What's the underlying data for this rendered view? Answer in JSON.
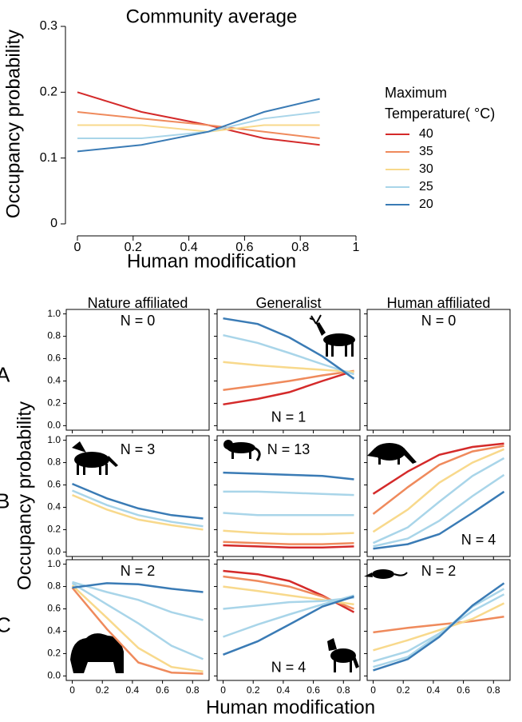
{
  "chart_data": [
    {
      "type": "line",
      "title": "Community average",
      "xlabel": "Human modification",
      "ylabel": "Occupancy probability",
      "legend_title": [
        "Maximum",
        "Temperature( °C)"
      ],
      "x": [
        0,
        0.23,
        0.47,
        0.67,
        0.87
      ],
      "xlim": [
        0,
        1
      ],
      "xticks": [
        0,
        0.2,
        0.4,
        0.6,
        0.8,
        1
      ],
      "ylim": [
        0,
        0.3
      ],
      "yticks": [
        0,
        0.1,
        0.2,
        0.3
      ],
      "series": [
        {
          "name": "40",
          "color": "#d42a2a",
          "values": [
            0.2,
            0.17,
            0.15,
            0.13,
            0.12
          ]
        },
        {
          "name": "35",
          "color": "#ef8a5c",
          "values": [
            0.17,
            0.16,
            0.15,
            0.14,
            0.13
          ]
        },
        {
          "name": "30",
          "color": "#f8d98c",
          "values": [
            0.15,
            0.15,
            0.14,
            0.15,
            0.15
          ]
        },
        {
          "name": "25",
          "color": "#a9d5e9",
          "values": [
            0.13,
            0.13,
            0.14,
            0.16,
            0.17
          ]
        },
        {
          "name": "20",
          "color": "#3a7bb5",
          "values": [
            0.11,
            0.12,
            0.14,
            0.17,
            0.19
          ]
        }
      ]
    },
    {
      "type": "line",
      "xlabel": "Human modification",
      "ylabel": "Occupancy probability",
      "columns": [
        "Nature affiliated",
        "Generalist",
        "Human affiliated"
      ],
      "rows": [
        "A",
        "B",
        "C"
      ],
      "x": [
        0,
        0.23,
        0.44,
        0.66,
        0.87
      ],
      "xlim": [
        -0.04,
        0.91
      ],
      "xticks": [
        0,
        0.2,
        0.4,
        0.6,
        0.8
      ],
      "ylim": [
        -0.04,
        1.04
      ],
      "yticks": [
        {
          "value": 0,
          "label": "0.0"
        },
        {
          "value": 0.2,
          "label": "0.2"
        },
        {
          "value": 0.4,
          "label": "0.4"
        },
        {
          "value": 0.6,
          "label": "0.6"
        },
        {
          "value": 0.8,
          "label": "0.8"
        },
        {
          "value": 1,
          "label": "1.0"
        }
      ],
      "panels": [
        {
          "annotation": "N = 0",
          "series": []
        },
        {
          "annotation": "N = 1",
          "series": [
            {
              "color": "#d42a2a",
              "values": [
                0.19,
                0.24,
                0.3,
                0.4,
                0.49
              ]
            },
            {
              "color": "#ef8a5c",
              "values": [
                0.32,
                0.36,
                0.4,
                0.45,
                0.49
              ]
            },
            {
              "color": "#f8d98c",
              "values": [
                0.57,
                0.54,
                0.52,
                0.5,
                0.48
              ]
            },
            {
              "color": "#a9d5e9",
              "values": [
                0.81,
                0.74,
                0.65,
                0.55,
                0.46
              ]
            },
            {
              "color": "#3a7bb5",
              "values": [
                0.96,
                0.91,
                0.79,
                0.62,
                0.42
              ]
            }
          ]
        },
        {
          "annotation": "N = 0",
          "series": []
        },
        {
          "annotation": "N = 3",
          "series": [
            {
              "color": "#f8d98c",
              "values": [
                0.51,
                0.38,
                0.29,
                0.24,
                0.2
              ]
            },
            {
              "color": "#a9d5e9",
              "values": [
                0.55,
                0.42,
                0.33,
                0.27,
                0.23
              ]
            },
            {
              "color": "#3a7bb5",
              "values": [
                0.61,
                0.48,
                0.39,
                0.33,
                0.3
              ]
            }
          ]
        },
        {
          "annotation": "N = 13",
          "series": [
            {
              "color": "#d42a2a",
              "values": [
                0.06,
                0.05,
                0.04,
                0.04,
                0.05
              ]
            },
            {
              "color": "#ef8a5c",
              "values": [
                0.09,
                0.08,
                0.07,
                0.07,
                0.08
              ]
            },
            {
              "color": "#f8d98c",
              "values": [
                0.19,
                0.17,
                0.16,
                0.16,
                0.17
              ]
            },
            {
              "color": "#a9d5e9",
              "values": [
                0.35,
                0.33,
                0.33,
                0.33,
                0.33
              ]
            },
            {
              "color": "#a9d5e9",
              "values": [
                0.54,
                0.54,
                0.53,
                0.52,
                0.51
              ]
            },
            {
              "color": "#3a7bb5",
              "values": [
                0.71,
                0.7,
                0.69,
                0.68,
                0.65
              ]
            }
          ]
        },
        {
          "annotation": "N = 4",
          "series": [
            {
              "color": "#d42a2a",
              "values": [
                0.52,
                0.72,
                0.87,
                0.94,
                0.97
              ]
            },
            {
              "color": "#ef8a5c",
              "values": [
                0.34,
                0.58,
                0.78,
                0.9,
                0.95
              ]
            },
            {
              "color": "#f8d98c",
              "values": [
                0.18,
                0.38,
                0.62,
                0.8,
                0.92
              ]
            },
            {
              "color": "#a9d5e9",
              "values": [
                0.08,
                0.22,
                0.45,
                0.68,
                0.84
              ]
            },
            {
              "color": "#a9d5e9",
              "values": [
                0.05,
                0.12,
                0.28,
                0.5,
                0.69
              ]
            },
            {
              "color": "#3a7bb5",
              "values": [
                0.03,
                0.07,
                0.16,
                0.35,
                0.54
              ]
            }
          ]
        },
        {
          "annotation": "N = 2",
          "series": [
            {
              "color": "#ef8a5c",
              "values": [
                0.79,
                0.42,
                0.12,
                0.03,
                0.02
              ]
            },
            {
              "color": "#f8d98c",
              "values": [
                0.81,
                0.52,
                0.25,
                0.08,
                0.04
              ]
            },
            {
              "color": "#a9d5e9",
              "values": [
                0.83,
                0.64,
                0.47,
                0.27,
                0.15
              ]
            },
            {
              "color": "#a9d5e9",
              "values": [
                0.84,
                0.75,
                0.68,
                0.57,
                0.5
              ]
            },
            {
              "color": "#3a7bb5",
              "values": [
                0.79,
                0.83,
                0.82,
                0.78,
                0.75
              ]
            }
          ]
        },
        {
          "annotation": "N = 4",
          "series": [
            {
              "color": "#d42a2a",
              "values": [
                0.94,
                0.91,
                0.85,
                0.72,
                0.57
              ]
            },
            {
              "color": "#ef8a5c",
              "values": [
                0.89,
                0.85,
                0.8,
                0.71,
                0.6
              ]
            },
            {
              "color": "#f8d98c",
              "values": [
                0.8,
                0.76,
                0.72,
                0.68,
                0.64
              ]
            },
            {
              "color": "#a9d5e9",
              "values": [
                0.6,
                0.63,
                0.66,
                0.67,
                0.7
              ]
            },
            {
              "color": "#a9d5e9",
              "values": [
                0.35,
                0.46,
                0.55,
                0.64,
                0.72
              ]
            },
            {
              "color": "#3a7bb5",
              "values": [
                0.19,
                0.31,
                0.46,
                0.62,
                0.71
              ]
            }
          ]
        },
        {
          "annotation": "N = 2",
          "series": [
            {
              "color": "#ef8a5c",
              "values": [
                0.39,
                0.43,
                0.46,
                0.49,
                0.53
              ]
            },
            {
              "color": "#f8d98c",
              "values": [
                0.23,
                0.32,
                0.41,
                0.51,
                0.65
              ]
            },
            {
              "color": "#a9d5e9",
              "values": [
                0.13,
                0.22,
                0.38,
                0.58,
                0.73
              ]
            },
            {
              "color": "#a9d5e9",
              "values": [
                0.08,
                0.17,
                0.37,
                0.62,
                0.78
              ]
            },
            {
              "color": "#3a7bb5",
              "values": [
                0.05,
                0.15,
                0.35,
                0.63,
                0.83
              ]
            }
          ]
        }
      ]
    }
  ]
}
